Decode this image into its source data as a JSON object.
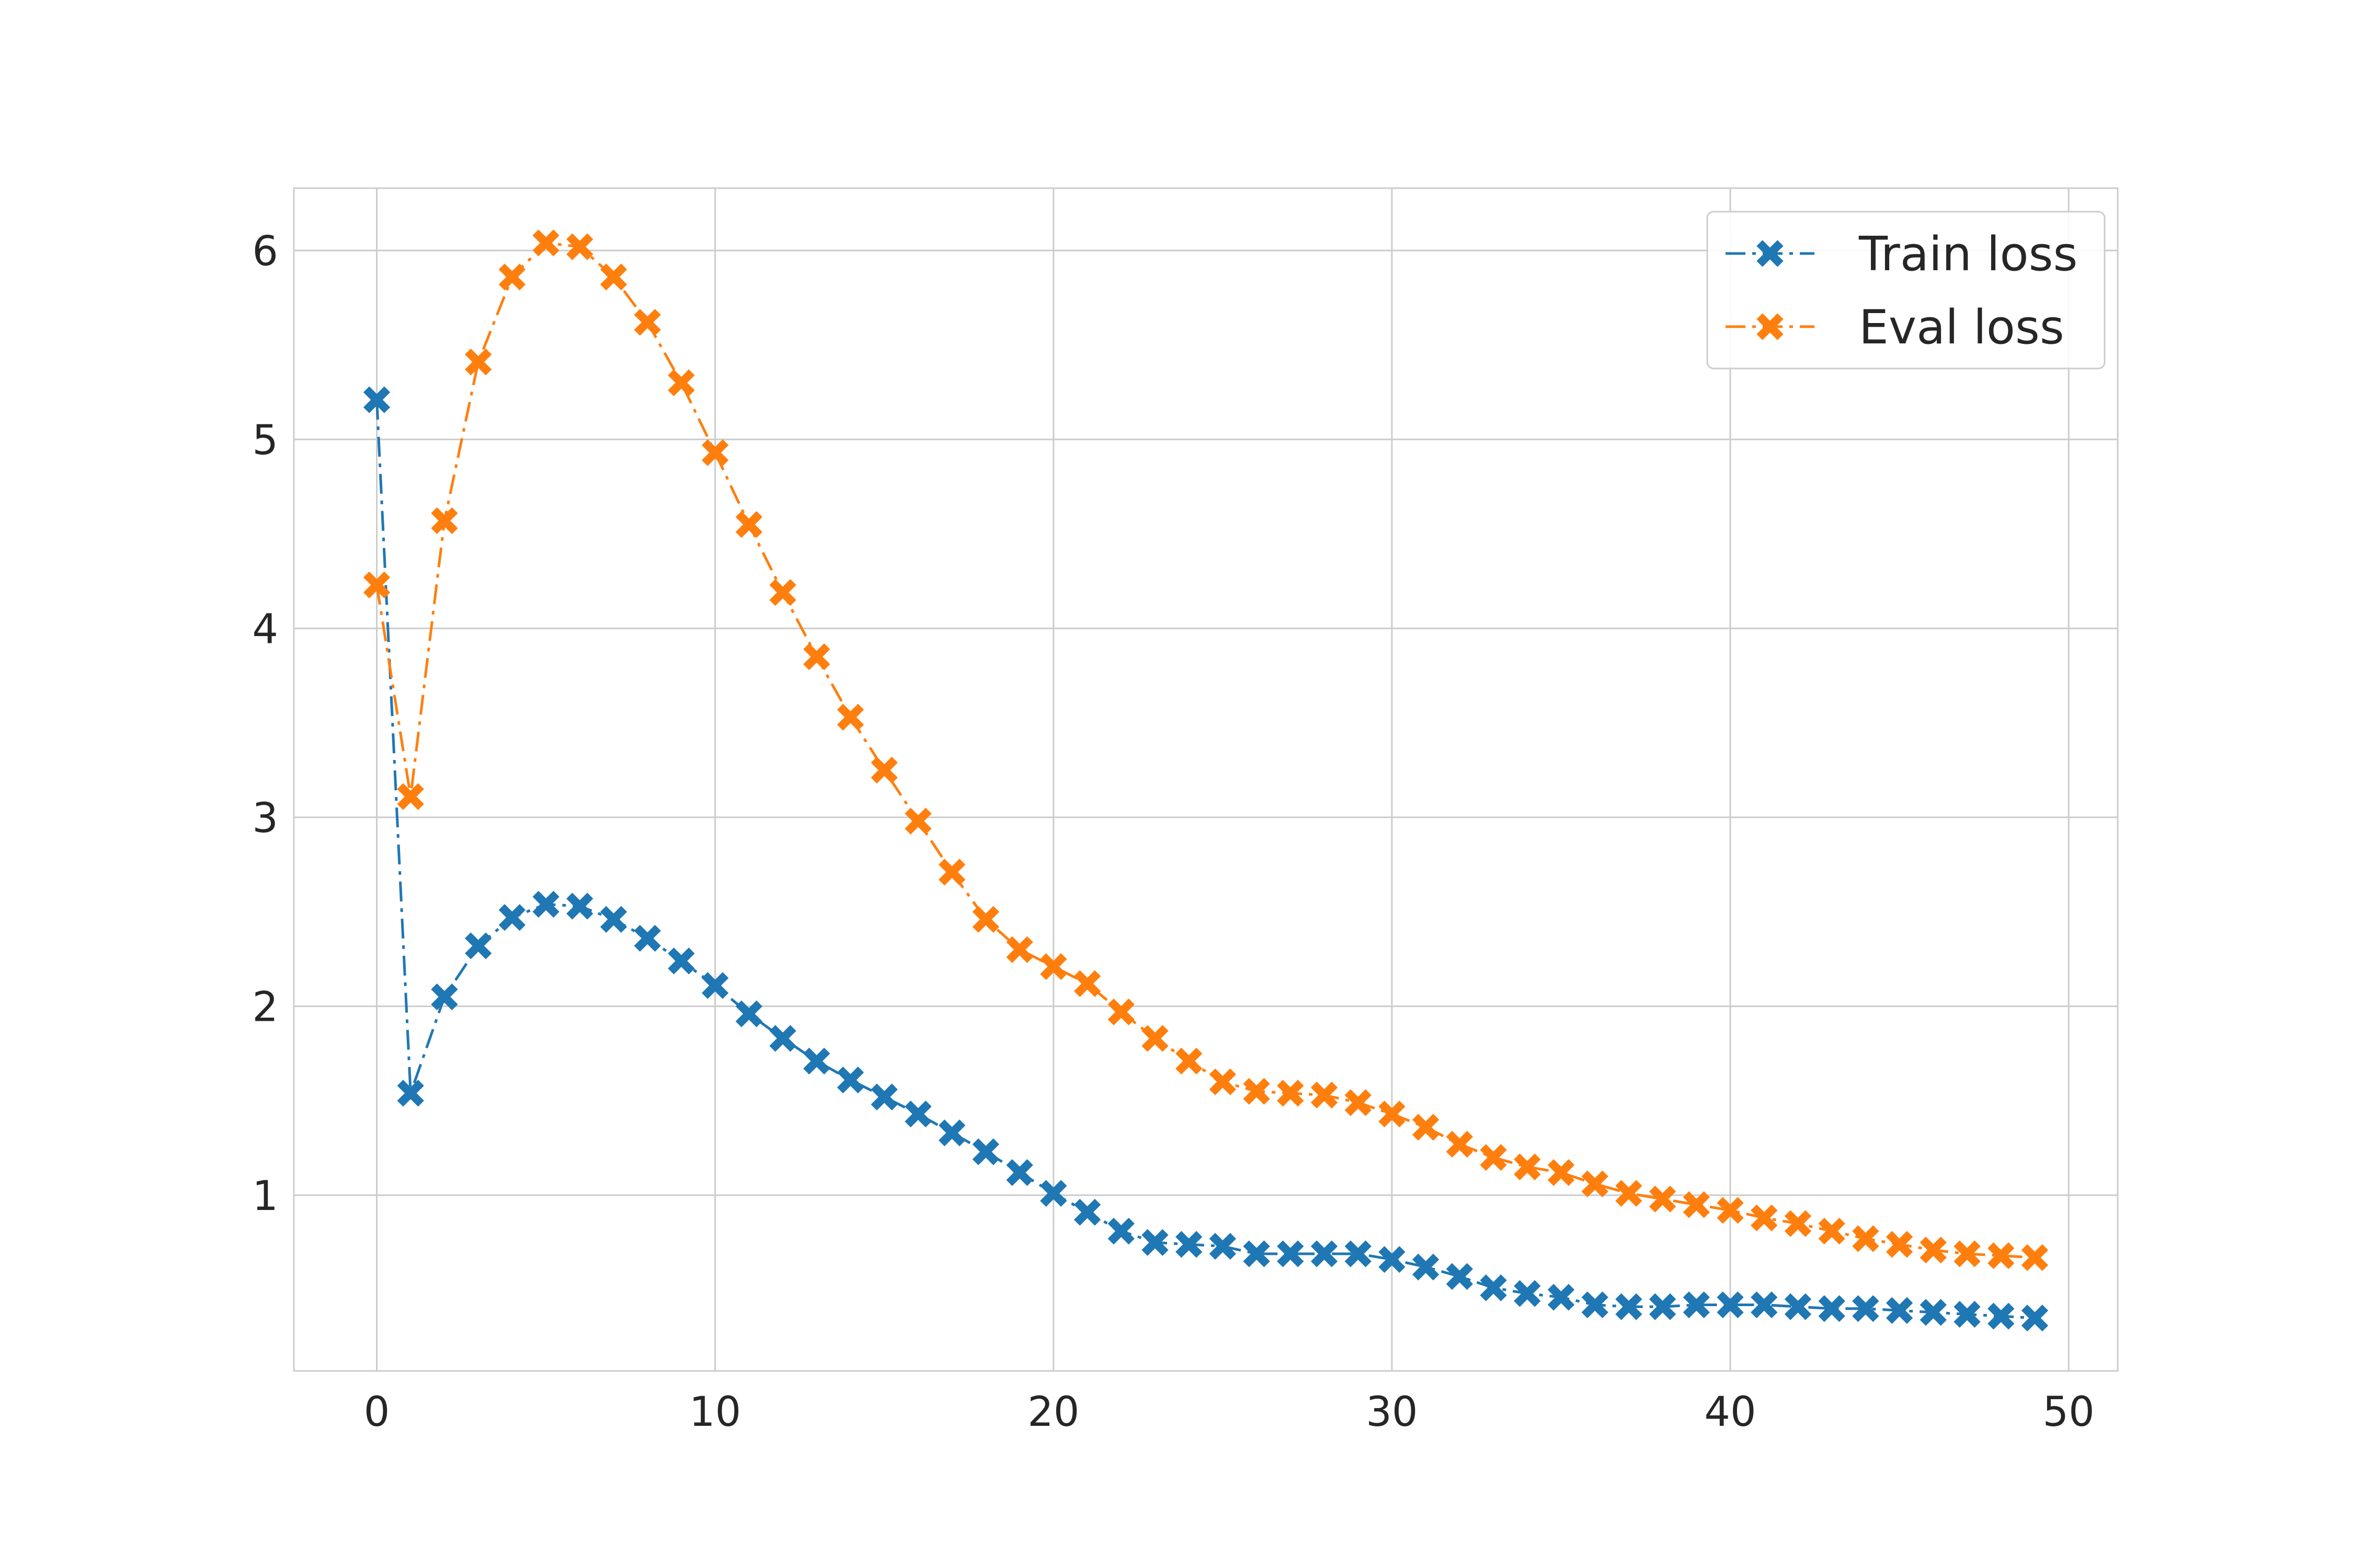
{
  "chart_data": {
    "type": "line",
    "title": "",
    "xlabel": "",
    "ylabel": "",
    "xlim": [
      -2.45,
      51.45
    ],
    "ylim": [
      0.07,
      6.33
    ],
    "xticks": [
      0,
      10,
      20,
      30,
      40,
      50
    ],
    "yticks": [
      1,
      2,
      3,
      4,
      5,
      6
    ],
    "grid": true,
    "legend_position": "top-right",
    "x": [
      0,
      1,
      2,
      3,
      4,
      5,
      6,
      7,
      8,
      9,
      10,
      11,
      12,
      13,
      14,
      15,
      16,
      17,
      18,
      19,
      20,
      21,
      22,
      23,
      24,
      25,
      26,
      27,
      28,
      29,
      30,
      31,
      32,
      33,
      34,
      35,
      36,
      37,
      38,
      39,
      40,
      41,
      42,
      43,
      44,
      45,
      46,
      47,
      48,
      49
    ],
    "series": [
      {
        "name": "Train loss",
        "color": "#1f77b4",
        "marker": "X",
        "linestyle": "dashdot",
        "values": [
          5.21,
          1.54,
          2.05,
          2.32,
          2.47,
          2.54,
          2.53,
          2.46,
          2.36,
          2.24,
          2.11,
          1.96,
          1.83,
          1.71,
          1.61,
          1.52,
          1.43,
          1.33,
          1.23,
          1.12,
          1.01,
          0.91,
          0.81,
          0.75,
          0.74,
          0.73,
          0.69,
          0.69,
          0.69,
          0.69,
          0.66,
          0.62,
          0.57,
          0.51,
          0.48,
          0.46,
          0.42,
          0.41,
          0.41,
          0.42,
          0.42,
          0.42,
          0.41,
          0.4,
          0.4,
          0.39,
          0.38,
          0.37,
          0.36,
          0.35
        ]
      },
      {
        "name": "Eval loss",
        "color": "#ff7f0e",
        "marker": "X",
        "linestyle": "dashdot",
        "values": [
          4.23,
          3.11,
          4.57,
          5.41,
          5.86,
          6.04,
          6.02,
          5.86,
          5.62,
          5.3,
          4.93,
          4.55,
          4.19,
          3.85,
          3.53,
          3.25,
          2.98,
          2.71,
          2.46,
          2.3,
          2.21,
          2.12,
          1.97,
          1.83,
          1.71,
          1.6,
          1.55,
          1.54,
          1.53,
          1.49,
          1.43,
          1.36,
          1.27,
          1.2,
          1.15,
          1.12,
          1.06,
          1.01,
          0.98,
          0.95,
          0.92,
          0.88,
          0.85,
          0.81,
          0.77,
          0.74,
          0.71,
          0.69,
          0.68,
          0.67
        ]
      }
    ]
  }
}
